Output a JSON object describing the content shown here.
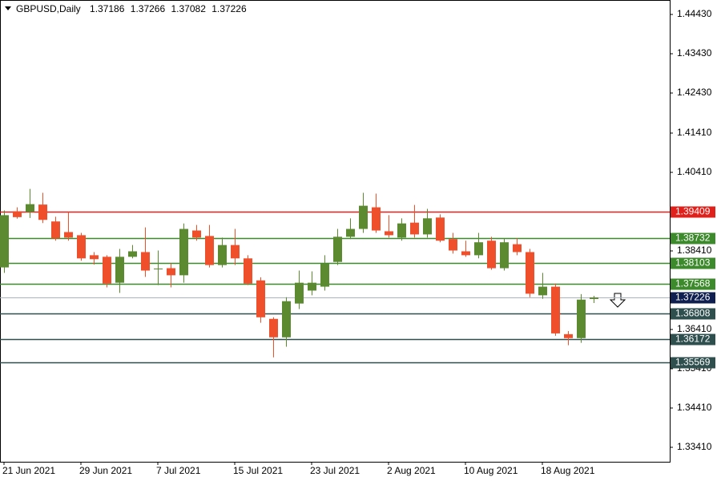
{
  "chart_data": {
    "type": "candlestick",
    "title": "GBPUSD,Daily",
    "header_values": [
      1.37186,
      1.37266,
      1.37082,
      1.37226
    ],
    "categories": [
      "21 Jun 2021",
      null,
      null,
      null,
      null,
      null,
      "29 Jun 2021",
      null,
      null,
      null,
      null,
      null,
      "7 Jul 2021",
      null,
      null,
      null,
      null,
      null,
      "15 Jul 2021",
      null,
      null,
      null,
      null,
      null,
      "23 Jul 2021",
      null,
      null,
      null,
      null,
      null,
      "2 Aug 2021",
      null,
      null,
      null,
      null,
      null,
      "10 Aug 2021",
      null,
      null,
      null,
      null,
      null,
      "18 Aug 2021",
      null,
      null,
      null,
      null
    ],
    "open": [
      1.3799,
      1.3942,
      1.394,
      1.3959,
      1.3916,
      1.3889,
      1.3881,
      1.383,
      1.3826,
      1.376,
      1.3826,
      1.3838,
      1.3795,
      1.3797,
      1.3779,
      1.3893,
      1.3879,
      1.3805,
      1.3856,
      1.3822,
      1.3766,
      1.3668,
      1.3621,
      1.3707,
      1.374,
      1.375,
      1.3813,
      1.3877,
      1.3897,
      1.3952,
      1.3891,
      1.3875,
      1.3913,
      1.3883,
      1.3926,
      1.3871,
      1.384,
      1.383,
      1.3867,
      1.3797,
      1.3858,
      1.3838,
      1.3728,
      1.375,
      1.3629,
      1.3619,
      1.37186
    ],
    "high": [
      1.3944,
      1.3952,
      1.3999,
      1.3989,
      1.3928,
      1.394,
      1.3887,
      1.3838,
      1.383,
      1.3846,
      1.3856,
      1.3901,
      1.3842,
      1.3809,
      1.3911,
      1.3907,
      1.3907,
      1.3875,
      1.3897,
      1.383,
      1.3774,
      1.3672,
      1.3723,
      1.3791,
      1.3789,
      1.383,
      1.3897,
      1.3924,
      1.3989,
      1.3987,
      1.3932,
      1.3924,
      1.3958,
      1.3948,
      1.3934,
      1.3887,
      1.3867,
      1.3887,
      1.3877,
      1.3873,
      1.3873,
      1.3846,
      1.3785,
      1.3758,
      1.3637,
      1.3731,
      1.37266
    ],
    "low": [
      1.3785,
      1.3923,
      1.3925,
      1.3912,
      1.3867,
      1.3867,
      1.3816,
      1.3806,
      1.3748,
      1.3734,
      1.3822,
      1.3775,
      1.3754,
      1.3748,
      1.376,
      1.3867,
      1.3799,
      1.3799,
      1.3805,
      1.3754,
      1.3658,
      1.357,
      1.3597,
      1.3693,
      1.3728,
      1.374,
      1.3805,
      1.3871,
      1.3887,
      1.3887,
      1.3875,
      1.3867,
      1.3875,
      1.3875,
      1.3863,
      1.3834,
      1.3826,
      1.3822,
      1.3793,
      1.3791,
      1.383,
      1.3723,
      1.3719,
      1.3625,
      1.3601,
      1.3607,
      1.37082
    ],
    "close": [
      1.3932,
      1.3927,
      1.396,
      1.392,
      1.3873,
      1.3875,
      1.3822,
      1.382,
      1.3758,
      1.3826,
      1.384,
      1.3791,
      1.3796,
      1.3779,
      1.3897,
      1.3875,
      1.3805,
      1.3856,
      1.3822,
      1.3758,
      1.3672,
      1.3621,
      1.3713,
      1.376,
      1.376,
      1.3809,
      1.3877,
      1.3897,
      1.3956,
      1.3893,
      1.3881,
      1.3911,
      1.3883,
      1.3924,
      1.3867,
      1.3842,
      1.383,
      1.3863,
      1.3797,
      1.3863,
      1.3838,
      1.3732,
      1.375,
      1.3631,
      1.3619,
      1.3717,
      1.37226
    ],
    "up_color": "#5b8a31",
    "down_color": "#ef4f2b",
    "ylim": [
      1.33042,
      1.44798
    ],
    "yticks": [
      {
        "value": 1.4443,
        "label": "1.44430"
      },
      {
        "value": 1.4343,
        "label": "1.43430"
      },
      {
        "value": 1.4243,
        "label": "1.42430"
      },
      {
        "value": 1.4141,
        "label": "1.41410"
      },
      {
        "value": 1.4041,
        "label": "1.40410"
      },
      {
        "value": 1.3841,
        "label": "1.38410"
      },
      {
        "value": 1.3641,
        "label": "1.36410"
      },
      {
        "value": 1.3541,
        "label": "1.35410"
      },
      {
        "value": 1.3441,
        "label": "1.34410"
      },
      {
        "value": 1.3341,
        "label": "1.33410"
      }
    ],
    "levels": [
      {
        "value": 1.39409,
        "color": "#e0201b"
      },
      {
        "value": 1.38732,
        "color": "#3c8a2c"
      },
      {
        "value": 1.38103,
        "color": "#3c8a2c"
      },
      {
        "value": 1.37568,
        "color": "#3c8a2c"
      },
      {
        "value": 1.36808,
        "color": "#2f4f4f"
      },
      {
        "value": 1.36172,
        "color": "#2f4f4f"
      },
      {
        "value": 1.35569,
        "color": "#2f4f4f"
      }
    ],
    "current_price": 1.37226,
    "current_color": "#0f1f4f"
  }
}
